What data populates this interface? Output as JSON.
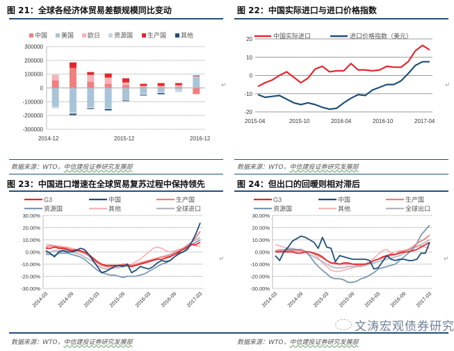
{
  "page": {
    "source_text_prefix": "数据来源：WTO，",
    "source_text_org": "中信建投证券研究发展部",
    "watermark": "文涛宏观债券研究",
    "return_mark": "↵"
  },
  "chart_data": [
    {
      "id": "fig21",
      "type": "bar",
      "stacked": true,
      "title": "图 21：全球各经济体贸易差额规模同比变动",
      "xlabel": "",
      "ylabel": "",
      "ylim": [
        -300000,
        300000
      ],
      "yticks": [
        "300000",
        "200000",
        "100000",
        "0",
        "-100000",
        "-200000",
        "-300000"
      ],
      "ytick_values": [
        300000,
        200000,
        100000,
        0,
        -100000,
        -200000,
        -300000
      ],
      "xtick_labels": [
        "2014-12",
        "2015-12",
        "2016-12"
      ],
      "categories": [
        "2014-12",
        "2015-03",
        "2015-06",
        "2015-09",
        "2015-12",
        "2016-03",
        "2016-06",
        "2016-09",
        "2016-12"
      ],
      "grid": true,
      "legend_position": "top",
      "series": [
        {
          "name": "中国",
          "color": "#f08080",
          "values": [
            55000,
            145000,
            45000,
            30000,
            20000,
            5000,
            5000,
            5000,
            -45000
          ]
        },
        {
          "name": "美国",
          "color": "#a9c4d8",
          "values": [
            -135000,
            -175000,
            -140000,
            -145000,
            -85000,
            -40000,
            -30000,
            -10000,
            75000
          ]
        },
        {
          "name": "欧日",
          "color": "#f5b5b8",
          "values": [
            40000,
            0,
            50000,
            45000,
            20000,
            10000,
            10000,
            15000,
            10000
          ]
        },
        {
          "name": "资源国",
          "color": "#c9d6e0",
          "values": [
            -12000,
            -12000,
            -8000,
            -8000,
            -5000,
            -10000,
            -8000,
            -20000,
            0
          ]
        },
        {
          "name": "生产国",
          "color": "#e3262b",
          "values": [
            0,
            40000,
            20000,
            30000,
            30000,
            15000,
            20000,
            15000,
            0
          ]
        },
        {
          "name": "其他",
          "color": "#1f4e79",
          "values": [
            0,
            -10000,
            -5000,
            -10000,
            -5000,
            -5000,
            -8000,
            0,
            5000
          ]
        }
      ]
    },
    {
      "id": "fig22",
      "type": "line",
      "title": "图 22：中国实际进口与进口价格指数",
      "xlabel": "",
      "ylabel": "",
      "ylim": [
        -20,
        20
      ],
      "yticks": [
        "20",
        "10",
        "0",
        "-10",
        "-20"
      ],
      "ytick_values": [
        20,
        10,
        0,
        -10,
        -20
      ],
      "xtick_labels": [
        "2015-04",
        "2015-10",
        "2016-04",
        "2016-10",
        "2017-04"
      ],
      "x": [
        "2015-04",
        "2015-05",
        "2015-06",
        "2015-07",
        "2015-08",
        "2015-09",
        "2015-10",
        "2015-11",
        "2015-12",
        "2016-01",
        "2016-02",
        "2016-03",
        "2016-04",
        "2016-05",
        "2016-06",
        "2016-07",
        "2016-08",
        "2016-09",
        "2016-10",
        "2016-11",
        "2016-12",
        "2017-01",
        "2017-02",
        "2017-03",
        "2017-04"
      ],
      "grid": true,
      "legend_position": "top",
      "series": [
        {
          "name": "中国实际进口",
          "color": "#e3262b",
          "values": [
            -6,
            -4,
            -2.5,
            0,
            2,
            -1,
            -4,
            -1.5,
            3.5,
            5,
            2,
            2.5,
            2.5,
            6.5,
            3,
            3,
            2.5,
            3,
            5,
            4.5,
            4.5,
            7.5,
            13.5,
            16.5,
            14
          ]
        },
        {
          "name": "进口价格指数（美元）",
          "color": "#1f4e79",
          "values": [
            -10.5,
            -12,
            -11.5,
            -11,
            -13,
            -15,
            -16,
            -15,
            -16,
            -17.5,
            -18.5,
            -18,
            -15,
            -12.5,
            -10.5,
            -11,
            -8,
            -6.5,
            -5,
            -5,
            -3,
            1,
            5.5,
            7.5,
            7.5
          ]
        }
      ]
    },
    {
      "id": "fig23",
      "type": "line",
      "title": "图 23：中国进口增速在全球贸易复苏过程中保持领先",
      "xlabel": "",
      "ylabel": "",
      "ylim": [
        -30,
        30
      ],
      "yticks": [
        "30.00%",
        "20.00%",
        "10.00%",
        "0.00%",
        "-10.00%",
        "-20.00%",
        "-30.00%"
      ],
      "ytick_values": [
        30,
        20,
        10,
        0,
        -10,
        -20,
        -30
      ],
      "xtick_labels": [
        "2014-03",
        "2014-09",
        "2015-03",
        "2015-09",
        "2016-03",
        "2016-09",
        "2017-03"
      ],
      "x_count": 37,
      "grid": true,
      "legend_position": "top",
      "series": [
        {
          "name": "G3",
          "color": "#e3262b",
          "values": [
            3,
            3,
            4,
            3,
            3,
            2,
            1,
            2,
            1,
            0,
            -2,
            -5,
            -8,
            -10,
            -11,
            -11,
            -11,
            -11,
            -11,
            -11,
            -12,
            -11,
            -10,
            -9,
            -8,
            -7,
            -6,
            -6,
            -5,
            -4,
            -2,
            0,
            2,
            4,
            6,
            6,
            8
          ]
        },
        {
          "name": "中国",
          "color": "#1f4e79",
          "values": [
            1,
            -1,
            -4,
            0,
            1,
            0,
            0,
            1,
            3,
            2,
            -2,
            -7,
            -12,
            -17,
            -16,
            -14,
            -12,
            -11,
            -12,
            -10,
            -17,
            -15,
            -12,
            -13,
            -14,
            -12,
            -9,
            -7,
            -8,
            -7,
            -4,
            -1,
            0,
            2,
            8,
            15,
            24
          ]
        },
        {
          "name": "生产国",
          "color": "#f08080",
          "values": [
            4,
            5,
            5,
            4,
            4,
            3,
            2,
            1,
            0,
            -1,
            -3,
            -6,
            -9,
            -11,
            -12,
            -12,
            -12,
            -11,
            -10,
            -10,
            -11,
            -10,
            -9,
            -8,
            -7,
            -6,
            -5,
            -4,
            -4,
            -3,
            -1,
            1,
            3,
            5,
            8,
            12,
            17
          ]
        },
        {
          "name": "资源国",
          "color": "#7b98b2",
          "values": [
            -2,
            -2,
            -3,
            -1,
            -1,
            -1,
            -2,
            -3,
            -4,
            -6,
            -9,
            -12,
            -15,
            -17,
            -18,
            -19,
            -19,
            -20,
            -21,
            -20,
            -20,
            -20,
            -19,
            -18,
            -16,
            -14,
            -12,
            -10,
            -9,
            -7,
            -4,
            -2,
            0,
            3,
            6,
            8,
            10
          ]
        },
        {
          "name": "其他",
          "color": "#f5b5b8",
          "values": [
            6,
            6,
            5,
            5,
            4,
            4,
            3,
            2,
            1,
            -1,
            -3,
            -6,
            -9,
            -11,
            -12,
            -13,
            -12,
            -12,
            -11,
            -11,
            -10,
            -8,
            -6,
            -3,
            0,
            3,
            4,
            3,
            1,
            0,
            1,
            2,
            3,
            5,
            6,
            5,
            5
          ]
        },
        {
          "name": "全球进口",
          "color": "#b0b8c0",
          "values": [
            -1,
            0,
            1,
            1,
            2,
            1,
            0,
            -1,
            -2,
            -4,
            -6,
            -8,
            -11,
            -13,
            -14,
            -14,
            -13,
            -13,
            -12,
            -12,
            -12,
            -11,
            -10,
            -9,
            -8,
            -6,
            -5,
            -4,
            -3,
            -2,
            0,
            1,
            3,
            6,
            8,
            10,
            12
          ]
        }
      ]
    },
    {
      "id": "fig24",
      "type": "line",
      "title": "图 24：但出口的回暖则相对滞后",
      "xlabel": "",
      "ylabel": "",
      "ylim": [
        -30,
        30
      ],
      "yticks": [
        "30.00%",
        "20.00%",
        "10.00%",
        "0.00%",
        "-10.00%",
        "-20.00%",
        "-30.00%"
      ],
      "ytick_values": [
        30,
        20,
        10,
        0,
        -10,
        -20,
        -30
      ],
      "xtick_labels": [
        "2014-03",
        "2014-09",
        "2015-03",
        "2015-09",
        "2016-03",
        "2016-09",
        "2017-03"
      ],
      "x_count": 37,
      "grid": true,
      "legend_position": "top",
      "series": [
        {
          "name": "G3",
          "color": "#e3262b",
          "values": [
            0,
            0,
            0,
            0,
            0,
            -1,
            -1,
            0,
            0,
            -1,
            -2,
            -4,
            -7,
            -9,
            -9,
            -10,
            -9,
            -9,
            -10,
            -10,
            -10,
            -10,
            -9,
            -7,
            -6,
            -4,
            -3,
            -2,
            -2,
            -1,
            0,
            0,
            1,
            2,
            4,
            6,
            8
          ]
        },
        {
          "name": "中国",
          "color": "#1f4e79",
          "values": [
            -3,
            -7,
            0,
            4,
            9,
            11,
            13,
            12,
            10,
            8,
            3,
            12,
            4,
            3,
            -8,
            -3,
            -4,
            -5,
            -6,
            -6,
            -6,
            -6,
            -7,
            -14,
            -13,
            -8,
            -3,
            -6,
            -7,
            -6,
            -6,
            -7,
            -7,
            -6,
            -1,
            -1,
            8
          ]
        },
        {
          "name": "生产国",
          "color": "#f08080",
          "values": [
            1,
            1,
            1,
            1,
            1,
            1,
            1,
            0,
            0,
            -1,
            -3,
            -5,
            -7,
            -9,
            -10,
            -10,
            -10,
            -10,
            -10,
            -11,
            -11,
            -10,
            -9,
            -7,
            -6,
            -5,
            -4,
            -3,
            -2,
            0,
            1,
            2,
            4,
            7,
            9,
            11,
            14
          ]
        },
        {
          "name": "资源国",
          "color": "#7b98b2",
          "values": [
            0,
            0,
            1,
            2,
            2,
            2,
            2,
            0,
            -3,
            -8,
            -12,
            -15,
            -18,
            -21,
            -22,
            -22,
            -23,
            -25,
            -25,
            -24,
            -22,
            -21,
            -19,
            -17,
            -14,
            -13,
            -12,
            -11,
            -10,
            -7,
            -4,
            -1,
            2,
            7,
            14,
            18,
            22
          ]
        },
        {
          "name": "其他",
          "color": "#f5b5b8",
          "values": [
            6,
            5,
            4,
            3,
            2,
            2,
            2,
            1,
            0,
            -2,
            -5,
            -9,
            -12,
            -15,
            -16,
            -16,
            -15,
            -14,
            -13,
            -12,
            -11,
            -10,
            -8,
            -5,
            -2,
            1,
            2,
            -1,
            0,
            1,
            1,
            2,
            3,
            4,
            5,
            4,
            3
          ]
        },
        {
          "name": "全球出口",
          "color": "#b0b8c0",
          "values": [
            1,
            2,
            2,
            3,
            3,
            2,
            1,
            0,
            -2,
            -4,
            -6,
            -8,
            -10,
            -12,
            -13,
            -13,
            -13,
            -12,
            -12,
            -12,
            -12,
            -11,
            -10,
            -9,
            -8,
            -7,
            -6,
            -5,
            -4,
            -3,
            -1,
            1,
            3,
            5,
            6,
            8,
            10
          ]
        }
      ]
    }
  ]
}
